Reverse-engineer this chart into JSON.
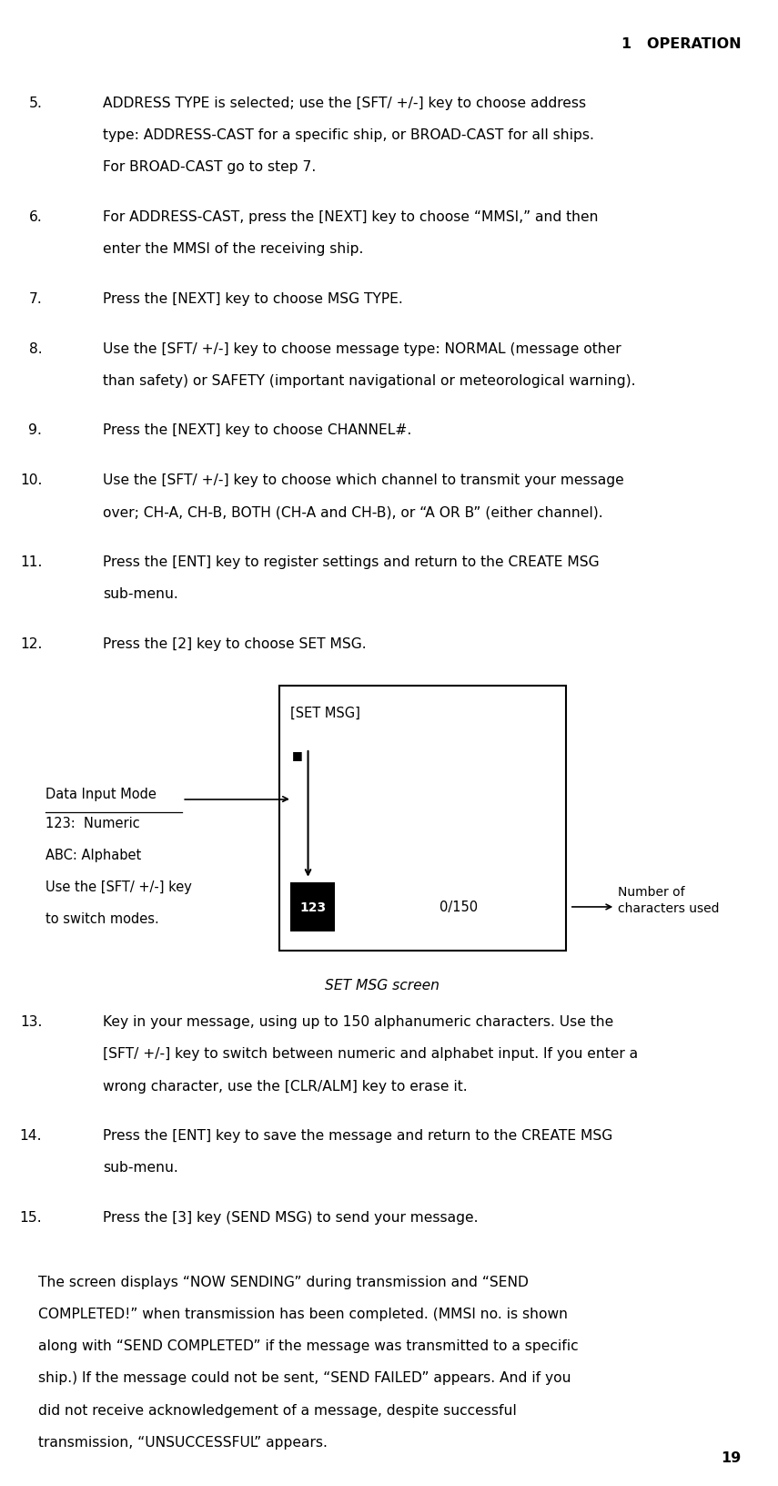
{
  "header": "1   OPERATION",
  "page_number": "19",
  "background_color": "#ffffff",
  "text_color": "#000000",
  "items": [
    {
      "number": "5.",
      "text": "ADDRESS TYPE is selected; use the [SFT/ +/-] key to choose address\ntype: ADDRESS-CAST for a specific ship, or BROAD-CAST for all ships.\nFor BROAD-CAST go to step 7."
    },
    {
      "number": "6.",
      "text": "For ADDRESS-CAST, press the [NEXT] key to choose “MMSI,” and then\nenter the MMSI of the receiving ship."
    },
    {
      "number": "7.",
      "text": "Press the [NEXT] key to choose MSG TYPE."
    },
    {
      "number": "8.",
      "text": "Use the [SFT/ +/-] key to choose message type: NORMAL (message other\nthan safety) or SAFETY (important navigational or meteorological warning)."
    },
    {
      "number": "9.",
      "text": "Press the [NEXT] key to choose CHANNEL#."
    },
    {
      "number": "10.",
      "text": "Use the [SFT/ +/-] key to choose which channel to transmit your message\nover; CH-A, CH-B, BOTH (CH-A and CH-B), or “A OR B” (either channel)."
    },
    {
      "number": "11.",
      "text": "Press the [ENT] key to register settings and return to the CREATE MSG\nsub-menu."
    },
    {
      "number": "12.",
      "text": "Press the [2] key to choose SET MSG."
    }
  ],
  "diagram": {
    "title": "[SET MSG]",
    "cursor": "■",
    "mode_header": "Data Input Mode",
    "mode_lines": [
      "123:  Numeric",
      "ABC: Alphabet",
      "Use the [SFT/ +/-] key",
      "to switch modes."
    ],
    "badge_text": "123",
    "count_text": "0/150",
    "count_label": "Number of\ncharacters used",
    "caption": "SET MSG screen"
  },
  "items2": [
    {
      "number": "13.",
      "text": "Key in your message, using up to 150 alphanumeric characters. Use the\n[SFT/ +/-] key to switch between numeric and alphabet input. If you enter a\nwrong character, use the [CLR/ALM] key to erase it."
    },
    {
      "number": "14.",
      "text": "Press the [ENT] key to save the message and return to the CREATE MSG\nsub-menu."
    },
    {
      "number": "15.",
      "text": "Press the [3] key (SEND MSG) to send your message."
    }
  ],
  "paragraph": "The screen displays “NOW SENDING” during transmission and “SEND\nCOMPLETED!” when transmission has been completed. (MMSI no. is shown\nalong with “SEND COMPLETED” if the message was transmitted to a specific\nship.) If the message could not be sent, “SEND FAILED” appears. And if you\ndid not receive acknowledgement of a message, despite successful\ntransmission, “UNSUCCESSFUL” appears."
}
